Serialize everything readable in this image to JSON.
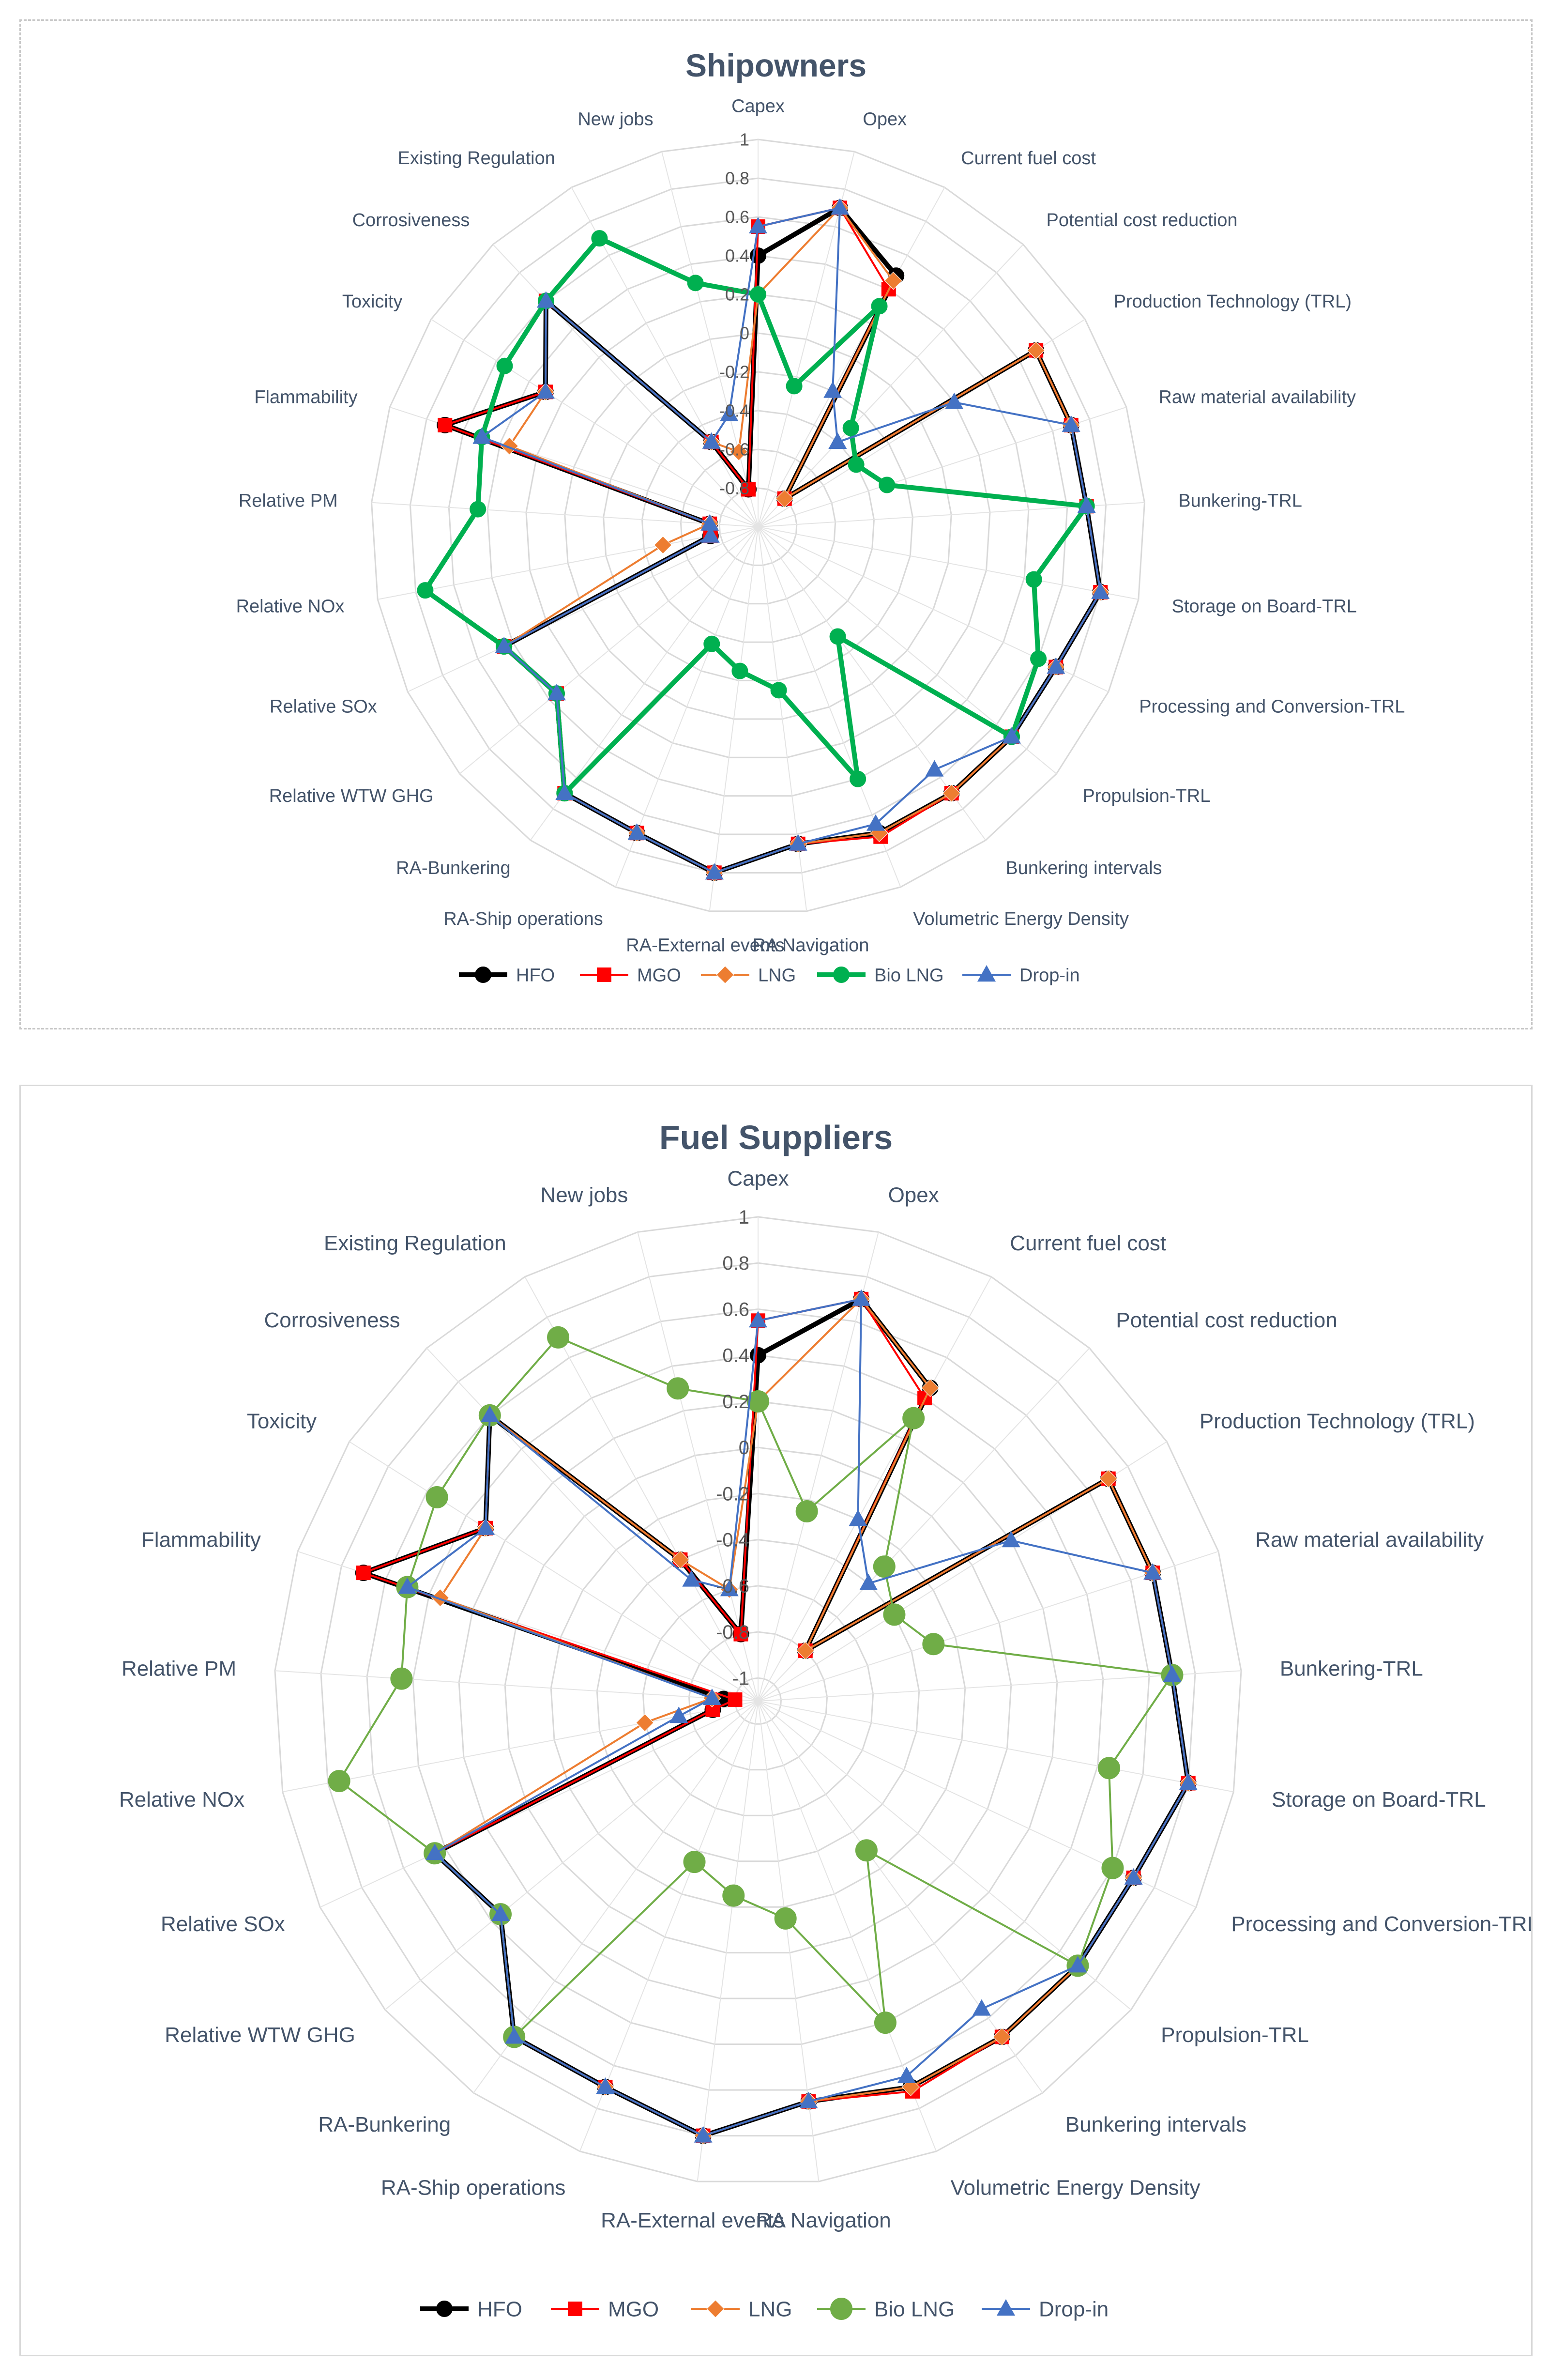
{
  "chart_data": [
    {
      "type": "radar",
      "title": "Shipowners",
      "categories": [
        "Capex",
        "Opex",
        "Current fuel cost",
        "Potential cost reduction",
        "Production Technology (TRL)",
        "Raw material availability",
        "Bunkering-TRL",
        "Storage on Board-TRL",
        "Processing and Conversion-TRL",
        "Propulsion-TRL",
        "Bunkering intervals",
        "Volumetric Energy Density",
        "RA Navigation",
        "RA-External events",
        "RA-Ship operations",
        "RA-Bunkering",
        "Relative WTW GHG",
        "Relative SOx",
        "Relative NOx",
        "Relative PM",
        "Flammability",
        "Toxicity",
        "Corrosiveness",
        "Existing Regulation",
        "New jobs"
      ],
      "r_ticks": [
        "-0.8",
        "-0.6",
        "-0.4",
        "-0.2",
        "0",
        "0.2",
        "0.4",
        "0.6",
        "0.8",
        "1"
      ],
      "rlim": [
        -1,
        1
      ],
      "series": [
        {
          "name": "HFO",
          "color": "#000000",
          "width": 10,
          "marker": "circle",
          "values": [
            0.4,
            0.7,
            0.48,
            -0.8,
            0.7,
            0.7,
            0.7,
            0.8,
            0.7,
            0.7,
            0.7,
            0.7,
            0.65,
            0.8,
            0.7,
            0.7,
            0.35,
            0.45,
            -0.75,
            -0.75,
            0.7,
            0.3,
            0.6,
            -0.5,
            -0.8
          ]
        },
        {
          "name": "MGO",
          "color": "#ff0000",
          "width": 4,
          "marker": "square",
          "values": [
            0.55,
            0.7,
            0.4,
            -0.8,
            0.7,
            0.7,
            0.7,
            0.8,
            0.7,
            0.7,
            0.7,
            0.72,
            0.65,
            0.8,
            0.7,
            0.7,
            0.35,
            0.45,
            -0.75,
            -0.75,
            0.7,
            0.3,
            0.6,
            -0.5,
            -0.8
          ]
        },
        {
          "name": "LNG",
          "color": "#ed7d31",
          "width": 4,
          "marker": "diamond",
          "values": [
            0.2,
            0.7,
            0.45,
            -0.8,
            0.7,
            0.7,
            0.7,
            0.8,
            0.7,
            0.7,
            0.7,
            0.7,
            0.65,
            0.8,
            0.7,
            0.7,
            0.35,
            0.45,
            -0.5,
            -0.75,
            0.35,
            0.3,
            0.6,
            -0.5,
            -0.6
          ]
        },
        {
          "name": "Bio LNG",
          "color": "#00b050",
          "width": 10,
          "marker": "circle",
          "values": [
            0.2,
            -0.25,
            0.3,
            -0.3,
            -0.4,
            -0.3,
            0.7,
            0.45,
            0.6,
            0.7,
            -0.3,
            0.4,
            -0.15,
            -0.25,
            -0.35,
            0.7,
            0.35,
            0.45,
            0.75,
            0.45,
            0.5,
            0.55,
            0.6,
            0.7,
            0.3
          ]
        },
        {
          "name": "Drop-in",
          "color": "#4472c4",
          "width": 4,
          "marker": "triangle",
          "values": [
            0.55,
            0.7,
            -0.2,
            -0.4,
            0.2,
            0.7,
            0.7,
            0.8,
            0.7,
            0.7,
            0.55,
            0.65,
            0.65,
            0.8,
            0.7,
            0.7,
            0.35,
            0.45,
            -0.75,
            -0.75,
            0.5,
            0.3,
            0.6,
            -0.5,
            -0.4
          ]
        }
      ]
    },
    {
      "type": "radar",
      "title": "Fuel Suppliers",
      "categories": [
        "Capex",
        "Opex",
        "Current fuel cost",
        "Potential cost reduction",
        "Production Technology (TRL)",
        "Raw material availability",
        "Bunkering-TRL",
        "Storage on Board-TRL",
        "Processing and Conversion-TRL",
        "Propulsion-TRL",
        "Bunkering intervals",
        "Volumetric Energy Density",
        "RA Navigation",
        "RA-External events",
        "RA-Ship operations",
        "RA-Bunkering",
        "Relative WTW GHG",
        "Relative SOx",
        "Relative NOx",
        "Relative PM",
        "Flammability",
        "Toxicity",
        "Corrosiveness",
        "Existing Regulation",
        "New jobs"
      ],
      "r_ticks": [
        "-1",
        "-0.8",
        "-0.6",
        "-0.4",
        "-0.2",
        "0",
        "0.2",
        "0.4",
        "0.6",
        "0.8",
        "1"
      ],
      "rlim": [
        -1.1,
        1
      ],
      "series": [
        {
          "name": "HFO",
          "color": "#000000",
          "width": 10,
          "marker": "circle",
          "values": [
            0.4,
            0.7,
            0.45,
            -0.8,
            0.7,
            0.7,
            0.7,
            0.8,
            0.7,
            0.7,
            0.7,
            0.7,
            0.65,
            0.8,
            0.7,
            0.7,
            0.35,
            0.45,
            -0.9,
            -0.95,
            0.7,
            0.3,
            0.6,
            -0.4,
            -0.8
          ]
        },
        {
          "name": "MGO",
          "color": "#ff0000",
          "width": 4,
          "marker": "square",
          "values": [
            0.55,
            0.7,
            0.4,
            -0.8,
            0.7,
            0.7,
            0.7,
            0.8,
            0.7,
            0.7,
            0.7,
            0.72,
            0.65,
            0.8,
            0.7,
            0.7,
            0.35,
            0.45,
            -0.9,
            -1.0,
            0.7,
            0.3,
            0.6,
            -0.4,
            -0.8
          ]
        },
        {
          "name": "LNG",
          "color": "#ed7d31",
          "width": 4,
          "marker": "diamond",
          "values": [
            0.2,
            0.7,
            0.45,
            -0.8,
            0.7,
            0.7,
            0.7,
            0.8,
            0.7,
            0.7,
            0.7,
            0.7,
            0.65,
            0.8,
            0.7,
            0.7,
            0.35,
            0.45,
            -0.6,
            -0.9,
            0.35,
            0.3,
            0.6,
            -0.4,
            -0.6
          ]
        },
        {
          "name": "Bio LNG",
          "color": "#70ad47",
          "width": 4,
          "marker": "bigcircle",
          "values": [
            0.2,
            -0.25,
            0.3,
            -0.3,
            -0.4,
            -0.3,
            0.7,
            0.45,
            0.6,
            0.7,
            -0.3,
            0.4,
            -0.15,
            -0.25,
            -0.35,
            0.7,
            0.35,
            0.45,
            0.75,
            0.45,
            0.5,
            0.55,
            0.6,
            0.7,
            0.3
          ]
        },
        {
          "name": "Drop-in",
          "color": "#4472c4",
          "width": 4,
          "marker": "triangle",
          "values": [
            0.55,
            0.7,
            -0.2,
            -0.4,
            0.2,
            0.7,
            0.7,
            0.8,
            0.7,
            0.7,
            0.55,
            0.65,
            0.65,
            0.8,
            0.7,
            0.7,
            0.35,
            0.45,
            -0.75,
            -0.9,
            0.5,
            0.3,
            0.6,
            -0.5,
            -0.6
          ]
        }
      ]
    }
  ]
}
